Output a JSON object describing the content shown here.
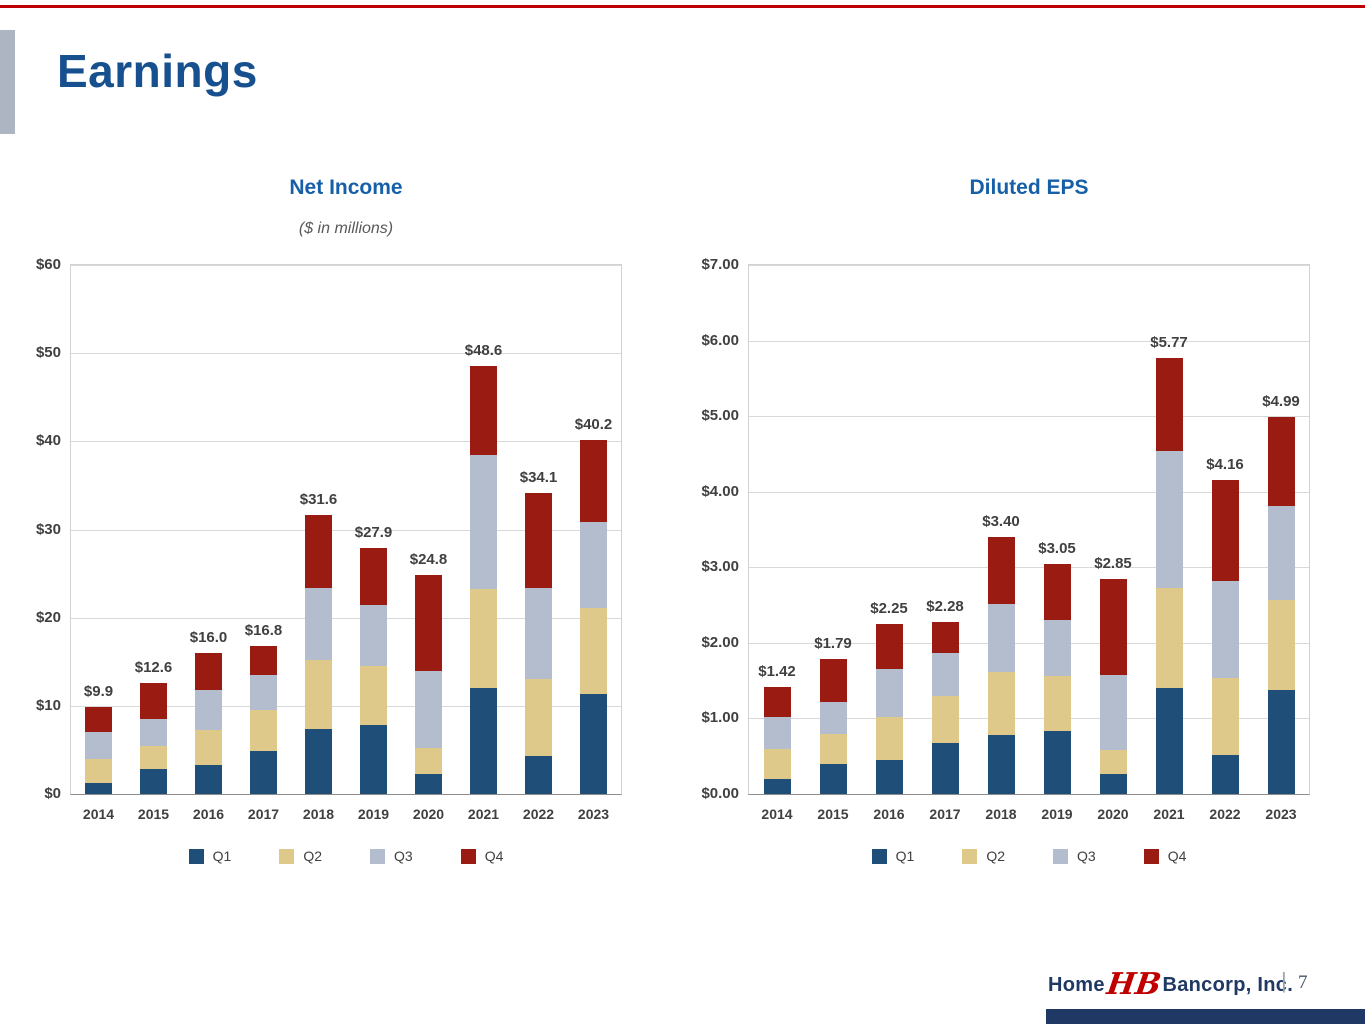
{
  "slide": {
    "title": "Earnings"
  },
  "colors": {
    "series": [
      "#1F4E79",
      "#DFC98A",
      "#B4BDCE",
      "#9A1B12"
    ],
    "title_blue": "#17508F",
    "chart_title_blue": "#1760A8",
    "top_rule_red": "#C00000",
    "footer_navy": "#1F3864",
    "accent_gray": "#AEB5C2"
  },
  "legend": [
    "Q1",
    "Q2",
    "Q3",
    "Q4"
  ],
  "chart_data": [
    {
      "type": "bar",
      "stacked": true,
      "title": "Net Income",
      "subtitle": "($ in millions)",
      "categories": [
        "2014",
        "2015",
        "2016",
        "2017",
        "2018",
        "2019",
        "2020",
        "2021",
        "2022",
        "2023"
      ],
      "series": [
        {
          "name": "Q1",
          "values": [
            1.3,
            2.8,
            3.3,
            4.9,
            7.4,
            7.8,
            2.3,
            12.0,
            4.3,
            11.3
          ]
        },
        {
          "name": "Q2",
          "values": [
            2.7,
            2.7,
            4.0,
            4.6,
            7.8,
            6.7,
            2.9,
            11.3,
            8.7,
            9.8
          ]
        },
        {
          "name": "Q3",
          "values": [
            3.0,
            3.0,
            4.5,
            4.0,
            8.2,
            6.9,
            8.8,
            15.1,
            10.4,
            9.8
          ]
        },
        {
          "name": "Q4",
          "values": [
            2.9,
            4.1,
            4.2,
            3.3,
            8.2,
            6.5,
            10.8,
            10.2,
            10.7,
            9.3
          ]
        }
      ],
      "totals": [
        9.9,
        12.6,
        16.0,
        16.8,
        31.6,
        27.9,
        24.8,
        48.6,
        34.1,
        40.2
      ],
      "totals_labels": [
        "$9.9",
        "$12.6",
        "$16.0",
        "$16.8",
        "$31.6",
        "$27.9",
        "$24.8",
        "$48.6",
        "$34.1",
        "$40.2"
      ],
      "ylim": [
        0,
        60
      ],
      "ytick_values": [
        0,
        10,
        20,
        30,
        40,
        50,
        60
      ],
      "ytick_labels": [
        "$0",
        "$10",
        "$20",
        "$30",
        "$40",
        "$50",
        "$60"
      ],
      "grid": true,
      "legend_position": "bottom"
    },
    {
      "type": "bar",
      "stacked": true,
      "title": "Diluted EPS",
      "subtitle": "",
      "categories": [
        "2014",
        "2015",
        "2016",
        "2017",
        "2018",
        "2019",
        "2020",
        "2021",
        "2022",
        "2023"
      ],
      "series": [
        {
          "name": "Q1",
          "values": [
            0.2,
            0.4,
            0.45,
            0.67,
            0.78,
            0.84,
            0.26,
            1.4,
            0.52,
            1.37
          ]
        },
        {
          "name": "Q2",
          "values": [
            0.4,
            0.4,
            0.57,
            0.63,
            0.84,
            0.72,
            0.32,
            1.32,
            1.02,
            1.2
          ]
        },
        {
          "name": "Q3",
          "values": [
            0.42,
            0.42,
            0.63,
            0.57,
            0.9,
            0.74,
            1.0,
            1.82,
            1.28,
            1.24
          ]
        },
        {
          "name": "Q4",
          "values": [
            0.4,
            0.57,
            0.6,
            0.41,
            0.88,
            0.75,
            1.27,
            1.23,
            1.34,
            1.18
          ]
        }
      ],
      "totals": [
        1.42,
        1.79,
        2.25,
        2.28,
        3.4,
        3.05,
        2.85,
        5.77,
        4.16,
        4.99
      ],
      "totals_labels": [
        "$1.42",
        "$1.79",
        "$2.25",
        "$2.28",
        "$3.40",
        "$3.05",
        "$2.85",
        "$5.77",
        "$4.16",
        "$4.99"
      ],
      "ylim": [
        0,
        7
      ],
      "ytick_values": [
        0,
        1,
        2,
        3,
        4,
        5,
        6,
        7
      ],
      "ytick_labels": [
        "$0.00",
        "$1.00",
        "$2.00",
        "$3.00",
        "$4.00",
        "$5.00",
        "$6.00",
        "$7.00"
      ],
      "grid": true,
      "legend_position": "bottom"
    }
  ],
  "footer": {
    "brand_left": "Home",
    "monogram": "HB",
    "brand_right": "Bancorp, Inc.",
    "separator": "|",
    "page_number": "7"
  }
}
